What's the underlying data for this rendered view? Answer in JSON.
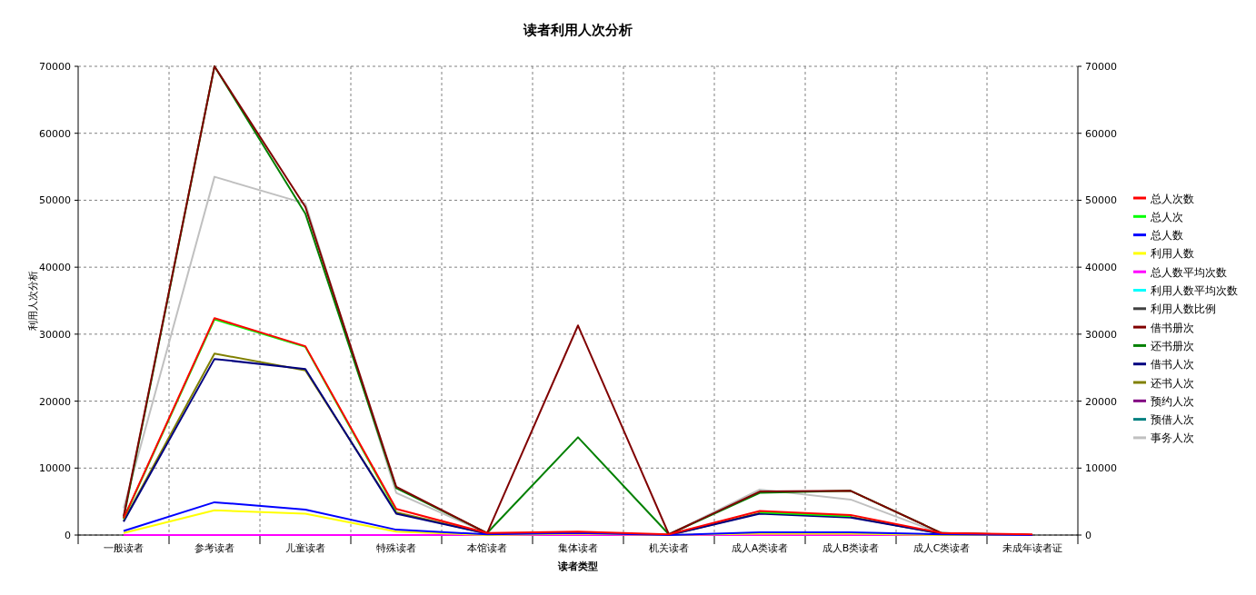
{
  "chart_data": {
    "type": "line",
    "title": "读者利用人次分析",
    "xlabel": "读者类型",
    "ylabel": "利用人次分析",
    "categories": [
      "一般读者",
      "参考读者",
      "儿童读者",
      "特殊读者",
      "本馆读者",
      "集体读者",
      "机关读者",
      "成人A类读者",
      "成人B类读者",
      "成人C类读者",
      "未成年读者证"
    ],
    "ylim": [
      0,
      70000
    ],
    "yticks": [
      0,
      10000,
      20000,
      30000,
      40000,
      50000,
      60000,
      70000
    ],
    "y2lim": [
      0,
      70000
    ],
    "y2ticks": [
      0,
      10000,
      20000,
      30000,
      40000,
      50000,
      60000,
      70000
    ],
    "grid": true,
    "legend": "right",
    "marker": "none",
    "line_style": "solid",
    "series": [
      {
        "name": "总人次数",
        "color": "#ff0000",
        "values": [
          2500,
          32400,
          28200,
          3900,
          300,
          500,
          100,
          3600,
          3000,
          300,
          100
        ]
      },
      {
        "name": "总人次",
        "color": "#00ff00",
        "values": [
          2400,
          32200,
          28100,
          3700,
          null,
          null,
          null,
          3400,
          2800,
          null,
          null
        ]
      },
      {
        "name": "总人数",
        "color": "#0000ff",
        "values": [
          600,
          4900,
          3800,
          800,
          100,
          300,
          0,
          400,
          400,
          100,
          0
        ]
      },
      {
        "name": "利用人数",
        "color": "#ffff00",
        "values": [
          300,
          3700,
          3200,
          500,
          0,
          200,
          0,
          200,
          200,
          0,
          0
        ]
      },
      {
        "name": "总人数平均次数",
        "color": "#ff00ff",
        "values": [
          0,
          0,
          0,
          0,
          0,
          0,
          0,
          0,
          0,
          0,
          0
        ]
      },
      {
        "name": "利用人数平均次数",
        "color": "#00ffff",
        "values": [
          null,
          null,
          null,
          null,
          null,
          null,
          null,
          null,
          null,
          null,
          null
        ]
      },
      {
        "name": "利用人数比例",
        "color": "#404040",
        "values": [
          null,
          null,
          null,
          null,
          null,
          null,
          null,
          null,
          null,
          null,
          null
        ]
      },
      {
        "name": "借书册次",
        "color": "#800000",
        "values": [
          2800,
          70000,
          49000,
          7200,
          300,
          31300,
          100,
          6500,
          6600,
          300,
          0
        ]
      },
      {
        "name": "还书册次",
        "color": "#008000",
        "values": [
          2500,
          70000,
          48000,
          7000,
          300,
          14600,
          100,
          6300,
          6600,
          300,
          0
        ]
      },
      {
        "name": "借书人次",
        "color": "#000080",
        "values": [
          2000,
          26300,
          24800,
          3200,
          200,
          300,
          0,
          3200,
          2600,
          200,
          0
        ]
      },
      {
        "name": "还书人次",
        "color": "#808000",
        "values": [
          2100,
          27100,
          24600,
          3400,
          200,
          300,
          0,
          3300,
          2700,
          200,
          0
        ]
      },
      {
        "name": "预约人次",
        "color": "#800080",
        "values": [
          null,
          null,
          null,
          null,
          null,
          null,
          null,
          null,
          null,
          null,
          null
        ]
      },
      {
        "name": "预借人次",
        "color": "#008080",
        "values": [
          null,
          null,
          null,
          null,
          null,
          null,
          null,
          null,
          null,
          null,
          null
        ]
      },
      {
        "name": "事务人次",
        "color": "#c0c0c0",
        "values": [
          4000,
          53500,
          49500,
          6300,
          300,
          null,
          100,
          6800,
          5300,
          200,
          0
        ]
      }
    ]
  }
}
